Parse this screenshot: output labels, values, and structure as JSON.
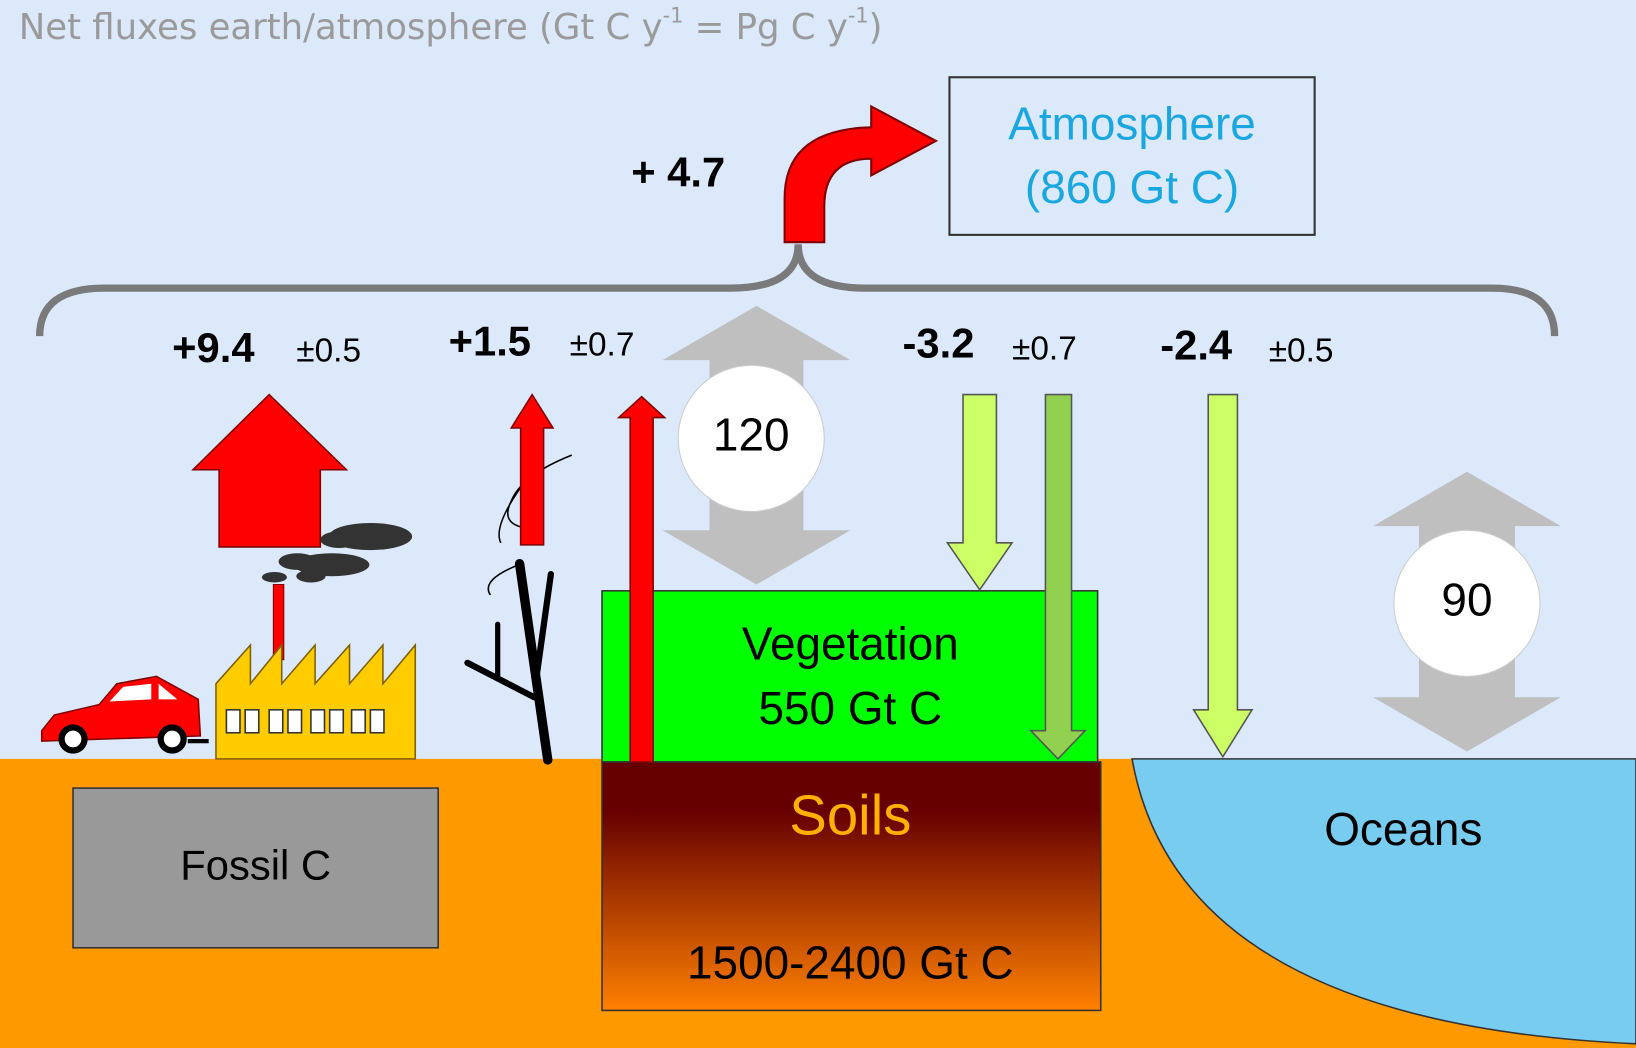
{
  "title": {
    "parts": [
      "Net fluxes earth/atmosphere (Gt C y",
      "-1",
      " = Pg C y",
      "-1",
      ")"
    ]
  },
  "atmosphere": {
    "label": "Atmosphere",
    "stock": "(860 Gt C)"
  },
  "net_flux": "+ 4.7",
  "fluxes": [
    {
      "value": "+9.4",
      "uncertainty": "±0.5"
    },
    {
      "value": "+1.5",
      "uncertainty": "±0.7"
    },
    {
      "value": "-3.2",
      "uncertainty": "±0.7"
    },
    {
      "value": "-2.4",
      "uncertainty": "±0.5"
    }
  ],
  "gross_exchanges": {
    "land": "120",
    "ocean": "90"
  },
  "reservoirs": {
    "vegetation": {
      "label": "Vegetation",
      "stock": "550 Gt C"
    },
    "soils": {
      "label": "Soils",
      "stock": "1500-2400 Gt C"
    },
    "fossil": {
      "label": "Fossil C"
    },
    "oceans": {
      "label": "Oceans"
    }
  }
}
